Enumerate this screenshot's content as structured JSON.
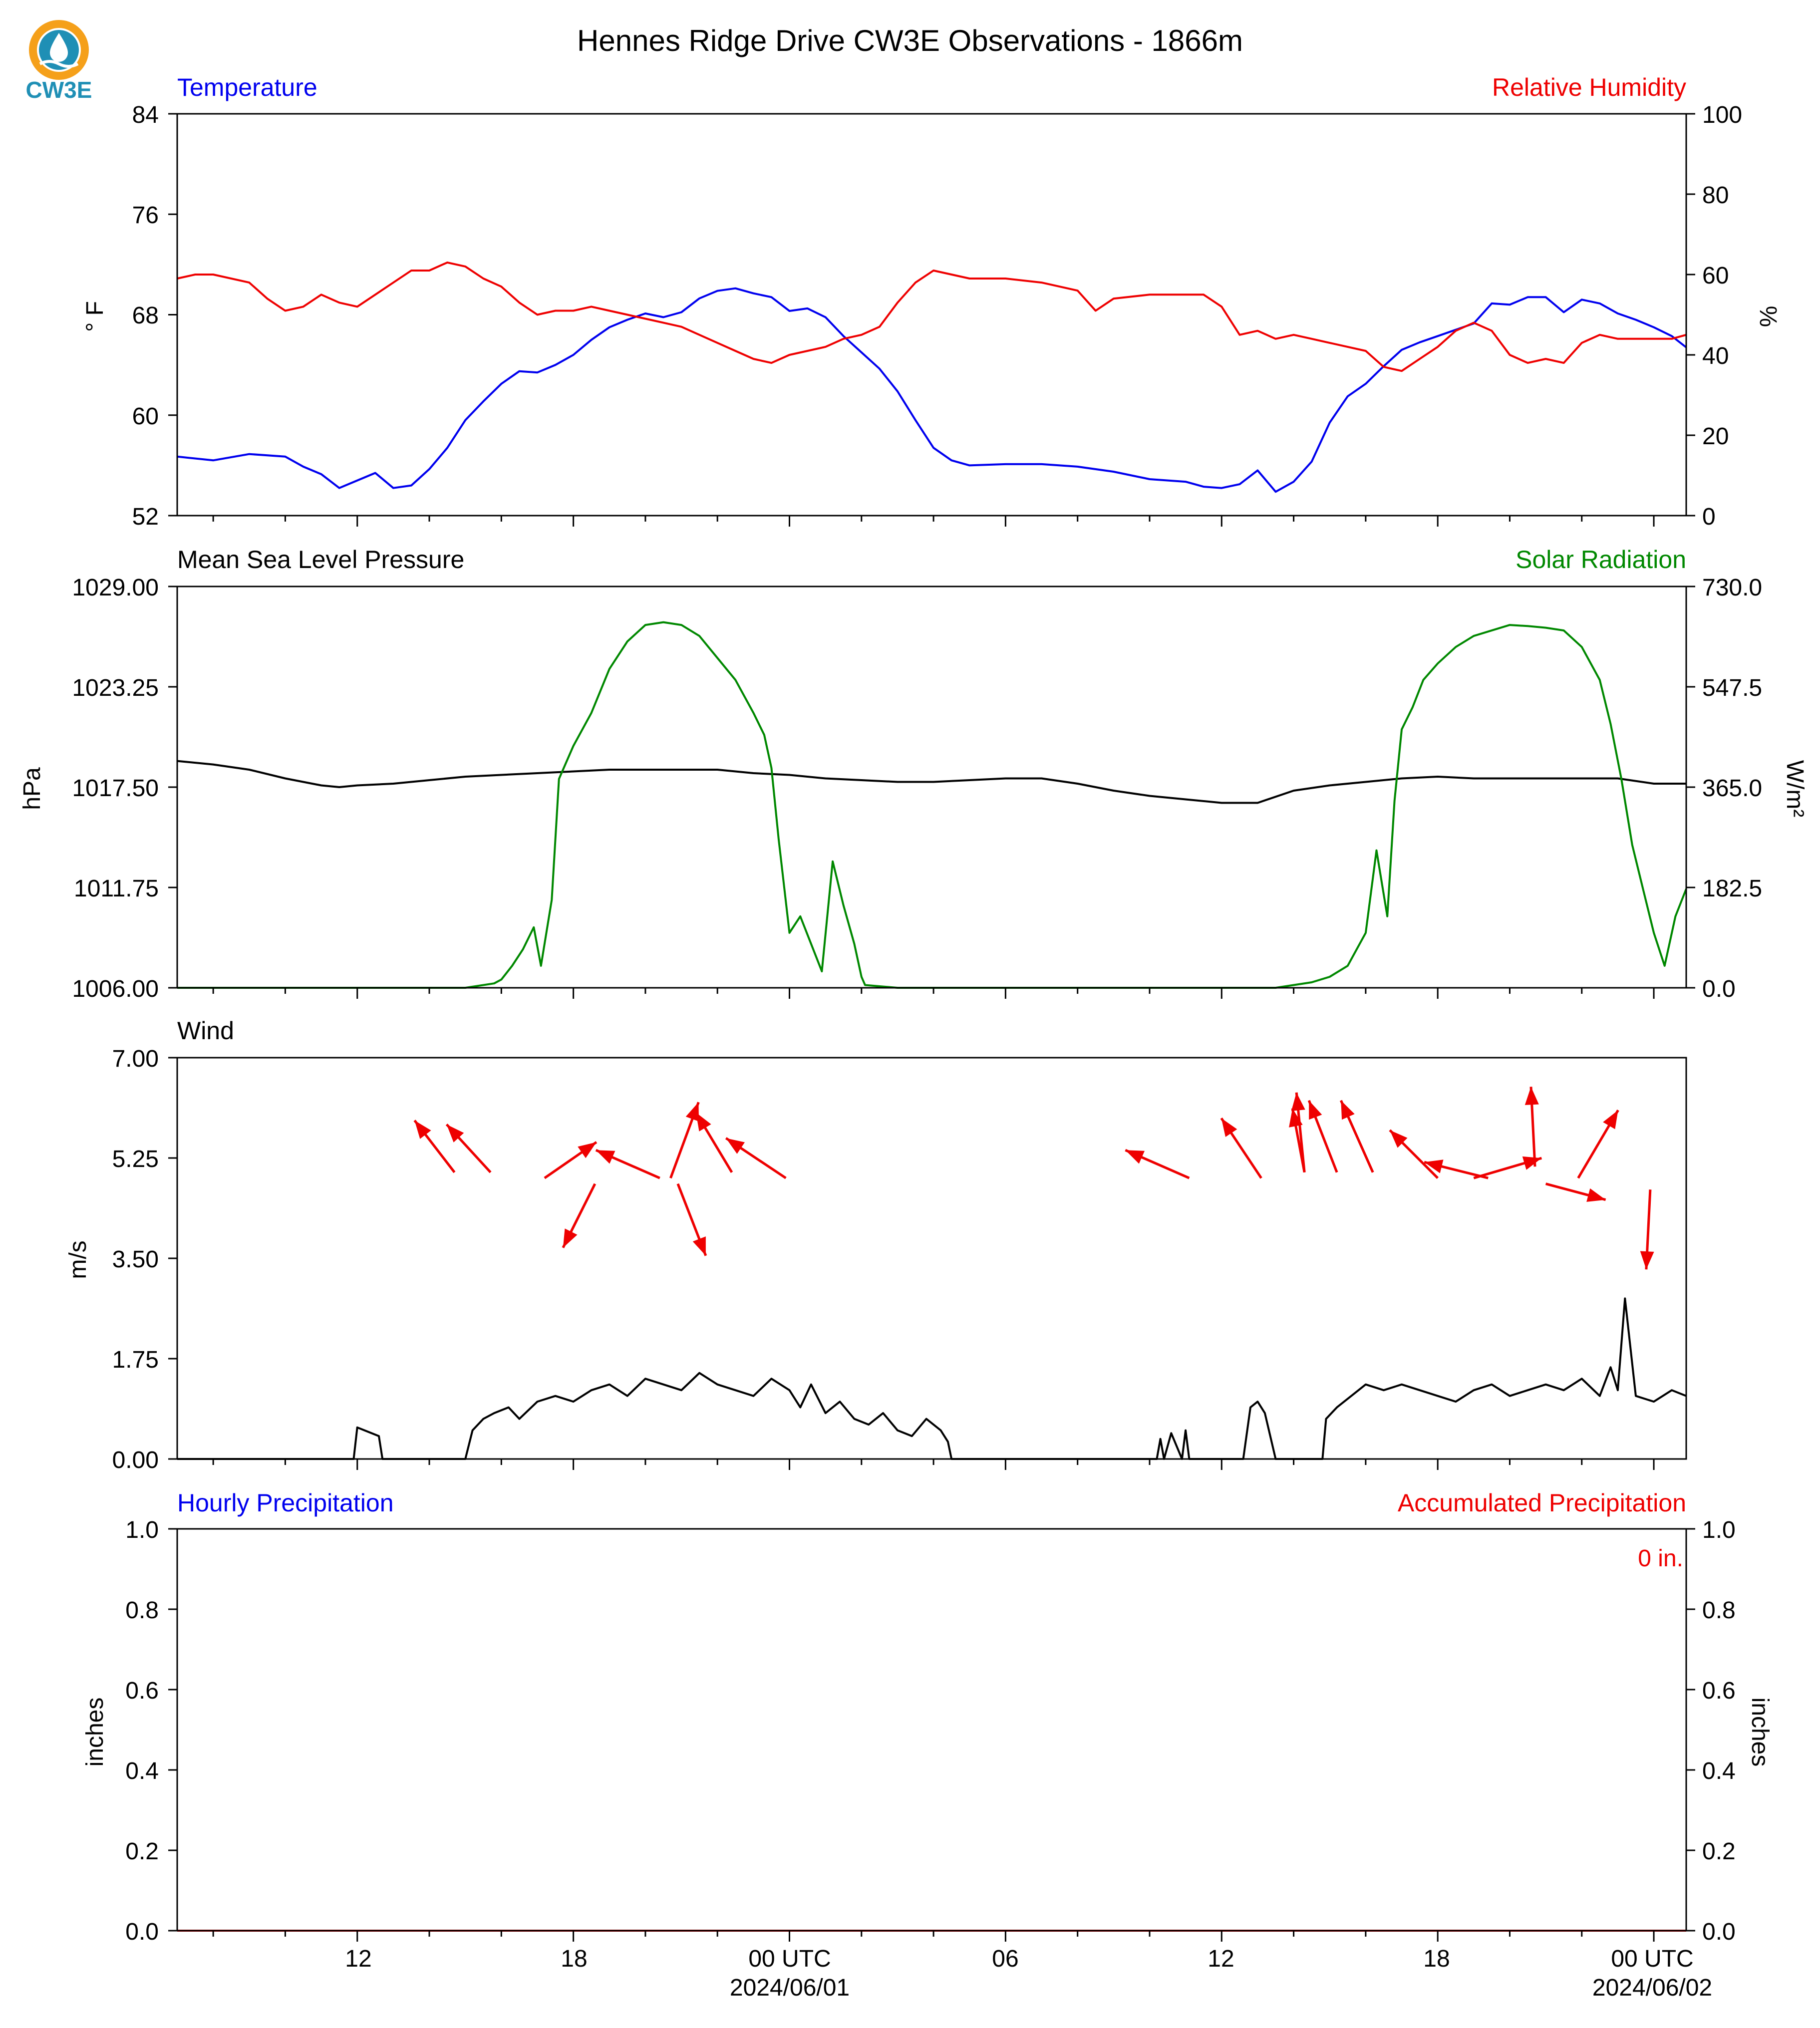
{
  "figure": {
    "title": "Hennes Ridge Drive CW3E Observations - 1866m",
    "logo_text": "CW3E",
    "logo_colors": {
      "ring": "#f5a01a",
      "drop": "#1f8fb5",
      "water": "#2a7fb8",
      "text": "#1f8fb5"
    }
  },
  "time_axis": {
    "start_hour": 7,
    "end_hour": 48.9,
    "major_ticks": [
      {
        "hour": 12,
        "label": "12",
        "date": ""
      },
      {
        "hour": 18,
        "label": "18",
        "date": ""
      },
      {
        "hour": 24,
        "label": "00 UTC",
        "date": "2024/06/01"
      },
      {
        "hour": 30,
        "label": "06",
        "date": ""
      },
      {
        "hour": 36,
        "label": "12",
        "date": ""
      },
      {
        "hour": 42,
        "label": "18",
        "date": ""
      },
      {
        "hour": 48,
        "label": "00 UTC",
        "date": "2024/06/02"
      }
    ],
    "minor_tick_hours": [
      8,
      10,
      14,
      16,
      20,
      22,
      26,
      28,
      32,
      34,
      38,
      40,
      44,
      46
    ]
  },
  "chart_data": [
    {
      "type": "line",
      "panel": "temperature-humidity",
      "left_title": "Temperature",
      "right_title": "Relative Humidity",
      "ylabel": "° F",
      "ylabel_right": "%",
      "ylim": [
        52,
        84
      ],
      "ylim_right": [
        0,
        100
      ],
      "yticks": [
        "84",
        "76",
        "68",
        "60",
        "52"
      ],
      "yticks_right": [
        "100",
        "80",
        "60",
        "40",
        "20",
        "0"
      ],
      "colors": {
        "left": "#0000ee",
        "right": "#ee0000"
      },
      "series": [
        {
          "name": "Temperature",
          "axis": "left",
          "color": "#0000ee",
          "x": [
            7.0,
            8.0,
            9.0,
            10.0,
            10.5,
            11.0,
            11.5,
            12.0,
            12.5,
            13.0,
            13.5,
            14.0,
            14.5,
            15.0,
            15.5,
            16.0,
            16.5,
            17.0,
            17.5,
            18.0,
            18.5,
            19.0,
            19.5,
            20.0,
            20.5,
            21.0,
            21.5,
            22.0,
            22.5,
            23.0,
            23.5,
            24.0,
            24.5,
            25.0,
            25.5,
            26.0,
            26.5,
            27.0,
            27.5,
            28.0,
            28.5,
            29.0,
            30.0,
            31.0,
            32.0,
            33.0,
            34.0,
            35.0,
            35.5,
            36.0,
            36.5,
            37.0,
            37.5,
            38.0,
            38.5,
            39.0,
            39.5,
            40.0,
            40.5,
            41.0,
            41.5,
            42.0,
            42.5,
            43.0,
            43.5,
            44.0,
            44.5,
            45.0,
            45.5,
            46.0,
            46.5,
            47.0,
            47.5,
            48.0,
            48.5,
            48.9
          ],
          "y": [
            56.7,
            56.4,
            56.9,
            56.7,
            55.9,
            55.3,
            54.2,
            54.8,
            55.4,
            54.2,
            54.4,
            55.7,
            57.4,
            59.6,
            61.1,
            62.5,
            63.5,
            63.4,
            64.0,
            64.8,
            66.0,
            67.0,
            67.6,
            68.1,
            67.8,
            68.2,
            69.3,
            69.9,
            70.1,
            69.7,
            69.4,
            68.3,
            68.5,
            67.8,
            66.3,
            65.0,
            63.7,
            61.9,
            59.6,
            57.4,
            56.4,
            56.0,
            56.1,
            56.1,
            55.9,
            55.5,
            54.9,
            54.7,
            54.3,
            54.2,
            54.5,
            55.6,
            53.9,
            54.7,
            56.3,
            59.4,
            61.5,
            62.5,
            63.9,
            65.2,
            65.8,
            66.3,
            66.8,
            67.3,
            68.9,
            68.8,
            69.4,
            69.4,
            68.2,
            69.2,
            68.9,
            68.1,
            67.6,
            67.0,
            66.3,
            65.4
          ]
        },
        {
          "name": "Relative Humidity",
          "axis": "right",
          "color": "#ee0000",
          "x": [
            7.0,
            7.5,
            8.0,
            9.0,
            9.5,
            10.0,
            10.5,
            11.0,
            11.5,
            12.0,
            12.5,
            13.0,
            13.5,
            14.0,
            14.5,
            15.0,
            15.5,
            16.0,
            16.5,
            17.0,
            17.5,
            18.0,
            18.5,
            19.0,
            19.5,
            20.0,
            20.5,
            21.0,
            21.5,
            22.0,
            22.5,
            23.0,
            23.5,
            24.0,
            24.5,
            25.0,
            25.5,
            26.0,
            26.5,
            27.0,
            27.5,
            28.0,
            28.5,
            29.0,
            30.0,
            31.0,
            32.0,
            32.5,
            33.0,
            34.0,
            35.0,
            35.5,
            36.0,
            36.5,
            37.0,
            37.5,
            38.0,
            38.5,
            39.0,
            39.5,
            40.0,
            40.5,
            41.0,
            41.5,
            42.0,
            42.5,
            43.0,
            43.5,
            44.0,
            44.5,
            45.0,
            45.5,
            46.0,
            46.5,
            47.0,
            47.5,
            48.0,
            48.5,
            48.9
          ],
          "y": [
            59,
            60,
            60,
            58,
            54,
            51,
            52,
            55,
            53,
            52,
            55,
            58,
            61,
            61,
            63,
            62,
            59,
            57,
            53,
            50,
            51,
            51,
            52,
            51,
            50,
            49,
            48,
            47,
            45,
            43,
            41,
            39,
            38,
            40,
            41,
            42,
            44,
            45,
            47,
            53,
            58,
            61,
            60,
            59,
            59,
            58,
            56,
            51,
            54,
            55,
            55,
            55,
            52,
            45,
            46,
            44,
            45,
            44,
            43,
            42,
            41,
            37,
            36,
            39,
            42,
            46,
            48,
            46,
            40,
            38,
            39,
            38,
            43,
            45,
            44,
            44,
            44,
            44,
            45
          ]
        }
      ]
    },
    {
      "type": "line",
      "panel": "pressure-solar",
      "left_title": "Mean Sea Level Pressure",
      "right_title": "Solar Radiation",
      "ylabel": "hPa",
      "ylabel_right": "W/m²",
      "ylim": [
        1006.0,
        1029.0
      ],
      "ylim_right": [
        0.0,
        730.0
      ],
      "yticks": [
        "1029.00",
        "1023.25",
        "1017.50",
        "1011.75",
        "1006.00"
      ],
      "yticks_right": [
        "730.0",
        "547.5",
        "365.0",
        "182.5",
        "0.0"
      ],
      "colors": {
        "left": "#000000",
        "right": "#008800"
      },
      "series": [
        {
          "name": "Mean Sea Level Pressure",
          "axis": "left",
          "color": "#000000",
          "x": [
            7.0,
            8.0,
            9.0,
            10.0,
            11.0,
            11.5,
            12.0,
            13.0,
            14.0,
            15.0,
            16.0,
            17.0,
            18.0,
            19.0,
            20.0,
            21.0,
            22.0,
            23.0,
            24.0,
            25.0,
            26.0,
            27.0,
            28.0,
            29.0,
            30.0,
            31.0,
            32.0,
            33.0,
            34.0,
            35.0,
            36.0,
            37.0,
            38.0,
            39.0,
            40.0,
            41.0,
            42.0,
            43.0,
            44.0,
            45.0,
            46.0,
            47.0,
            48.0,
            48.9
          ],
          "y": [
            1019.0,
            1018.8,
            1018.5,
            1018.0,
            1017.6,
            1017.5,
            1017.6,
            1017.7,
            1017.9,
            1018.1,
            1018.2,
            1018.3,
            1018.4,
            1018.5,
            1018.5,
            1018.5,
            1018.5,
            1018.3,
            1018.2,
            1018.0,
            1017.9,
            1017.8,
            1017.8,
            1017.9,
            1018.0,
            1018.0,
            1017.7,
            1017.3,
            1017.0,
            1016.8,
            1016.6,
            1016.6,
            1017.3,
            1017.6,
            1017.8,
            1018.0,
            1018.1,
            1018.0,
            1018.0,
            1018.0,
            1018.0,
            1018.0,
            1017.7,
            1017.7
          ]
        },
        {
          "name": "Solar Radiation",
          "axis": "right",
          "color": "#008800",
          "x": [
            7.0,
            11.0,
            12.0,
            13.0,
            14.5,
            15.0,
            15.8,
            16.0,
            16.3,
            16.6,
            16.9,
            17.1,
            17.4,
            17.6,
            18.0,
            18.5,
            19.0,
            19.5,
            20.0,
            20.5,
            21.0,
            21.5,
            22.0,
            22.5,
            23.0,
            23.3,
            23.5,
            23.7,
            24.0,
            24.3,
            24.6,
            24.9,
            25.2,
            25.5,
            25.8,
            26.0,
            26.1,
            27.0,
            30.0,
            35.0,
            36.0,
            37.5,
            38.0,
            38.5,
            39.0,
            39.5,
            40.0,
            40.3,
            40.6,
            40.8,
            41.0,
            41.3,
            41.6,
            42.0,
            42.5,
            43.0,
            43.5,
            44.0,
            44.5,
            45.0,
            45.5,
            46.0,
            46.5,
            46.8,
            47.1,
            47.4,
            47.7,
            48.0,
            48.3,
            48.6,
            48.9
          ],
          "y": [
            0,
            0,
            0,
            0,
            0,
            0,
            8,
            15,
            40,
            70,
            110,
            40,
            160,
            380,
            440,
            500,
            580,
            630,
            660,
            665,
            660,
            640,
            600,
            560,
            500,
            460,
            400,
            270,
            100,
            130,
            80,
            30,
            230,
            150,
            80,
            20,
            5,
            0,
            0,
            0,
            0,
            0,
            5,
            10,
            20,
            40,
            100,
            250,
            130,
            340,
            470,
            510,
            560,
            590,
            620,
            640,
            650,
            660,
            658,
            655,
            650,
            620,
            560,
            480,
            380,
            260,
            180,
            100,
            40,
            130,
            180
          ]
        }
      ]
    },
    {
      "type": "line",
      "panel": "wind",
      "left_title": "Wind",
      "ylabel": "m/s",
      "ylim": [
        0.0,
        7.0
      ],
      "yticks": [
        "7.00",
        "5.25",
        "3.50",
        "1.75",
        "0.00"
      ],
      "colors": {
        "speed": "#000000",
        "arrows": "#ee0000"
      },
      "series": [
        {
          "name": "Wind Speed",
          "color": "#000000",
          "x": [
            7.0,
            11.9,
            12.0,
            12.2,
            12.6,
            12.7,
            15.0,
            15.2,
            15.5,
            15.8,
            16.2,
            16.5,
            17.0,
            17.5,
            18.0,
            18.5,
            19.0,
            19.5,
            20.0,
            20.5,
            21.0,
            21.5,
            22.0,
            22.5,
            23.0,
            23.5,
            24.0,
            24.3,
            24.6,
            25.0,
            25.4,
            25.8,
            26.2,
            26.6,
            27.0,
            27.4,
            27.8,
            28.2,
            28.4,
            28.5,
            34.2,
            34.3,
            34.4,
            34.6,
            34.9,
            35.0,
            35.1,
            36.0,
            36.6,
            36.8,
            37.0,
            37.2,
            37.5,
            38.0,
            38.8,
            38.9,
            39.2,
            39.6,
            40.0,
            40.5,
            41.0,
            41.5,
            42.0,
            42.5,
            43.0,
            43.5,
            44.0,
            44.5,
            45.0,
            45.5,
            46.0,
            46.5,
            46.8,
            47.0,
            47.2,
            47.5,
            48.0,
            48.5,
            48.9
          ],
          "y": [
            0,
            0,
            0.55,
            0.5,
            0.4,
            0,
            0,
            0.5,
            0.7,
            0.8,
            0.9,
            0.7,
            1.0,
            1.1,
            1.0,
            1.2,
            1.3,
            1.1,
            1.4,
            1.3,
            1.2,
            1.5,
            1.3,
            1.2,
            1.1,
            1.4,
            1.2,
            0.9,
            1.3,
            0.8,
            1.0,
            0.7,
            0.6,
            0.8,
            0.5,
            0.4,
            0.7,
            0.5,
            0.3,
            0,
            0,
            0.35,
            0,
            0.45,
            0,
            0.5,
            0,
            0,
            0,
            0.9,
            1.0,
            0.8,
            0,
            0,
            0,
            0.7,
            0.9,
            1.1,
            1.3,
            1.2,
            1.3,
            1.2,
            1.1,
            1.0,
            1.2,
            1.3,
            1.1,
            1.2,
            1.3,
            1.2,
            1.4,
            1.1,
            1.6,
            1.2,
            2.8,
            1.1,
            1.0,
            1.2,
            1.1
          ]
        }
      ],
      "wind_arrows": [
        {
          "hour": 14.7,
          "speed": 5.0,
          "u": -1.0,
          "v": 1.3
        },
        {
          "hour": 15.7,
          "speed": 5.0,
          "u": -1.1,
          "v": 1.2
        },
        {
          "hour": 17.2,
          "speed": 4.9,
          "u": 1.3,
          "v": 0.9
        },
        {
          "hour": 18.6,
          "speed": 4.8,
          "u": -0.8,
          "v": -1.6
        },
        {
          "hour": 20.7,
          "speed": 4.9,
          "u": 0.7,
          "v": 1.9
        },
        {
          "hour": 20.4,
          "speed": 4.9,
          "u": -1.6,
          "v": 0.7
        },
        {
          "hour": 20.9,
          "speed": 4.8,
          "u": 0.7,
          "v": -1.8
        },
        {
          "hour": 22.4,
          "speed": 5.0,
          "u": -0.9,
          "v": 1.5
        },
        {
          "hour": 23.9,
          "speed": 4.9,
          "u": -1.5,
          "v": 1.0
        },
        {
          "hour": 35.1,
          "speed": 4.9,
          "u": -1.6,
          "v": 0.7
        },
        {
          "hour": 37.1,
          "speed": 4.9,
          "u": -1.0,
          "v": 1.5
        },
        {
          "hour": 38.3,
          "speed": 5.0,
          "u": -0.2,
          "v": 2.0
        },
        {
          "hour": 38.3,
          "speed": 5.0,
          "u": -0.3,
          "v": 1.6
        },
        {
          "hour": 39.2,
          "speed": 5.0,
          "u": -0.7,
          "v": 1.8
        },
        {
          "hour": 40.2,
          "speed": 5.0,
          "u": -0.8,
          "v": 1.8
        },
        {
          "hour": 42.0,
          "speed": 4.9,
          "u": -1.2,
          "v": 1.2
        },
        {
          "hour": 43.0,
          "speed": 4.9,
          "u": 1.7,
          "v": 0.5
        },
        {
          "hour": 43.4,
          "speed": 4.9,
          "u": -1.6,
          "v": 0.4
        },
        {
          "hour": 44.7,
          "speed": 5.1,
          "u": -0.1,
          "v": 2.0
        },
        {
          "hour": 45.0,
          "speed": 4.8,
          "u": 1.5,
          "v": -0.4
        },
        {
          "hour": 45.9,
          "speed": 4.9,
          "u": 1.0,
          "v": 1.7
        },
        {
          "hour": 47.9,
          "speed": 4.7,
          "u": -0.1,
          "v": -2.0
        }
      ]
    },
    {
      "type": "line",
      "panel": "precipitation",
      "left_title": "Hourly Precipitation",
      "right_title": "Accumulated Precipitation",
      "ylabel": "inches",
      "ylabel_right": "inches",
      "ylim": [
        0.0,
        1.0
      ],
      "ylim_right": [
        0.0,
        1.0
      ],
      "yticks": [
        "1.0",
        "0.8",
        "0.6",
        "0.4",
        "0.2",
        "0.0"
      ],
      "yticks_right": [
        "1.0",
        "0.8",
        "0.6",
        "0.4",
        "0.2",
        "0.0"
      ],
      "total_label": "0 in.",
      "colors": {
        "left": "#0000ee",
        "right": "#ee0000"
      },
      "series": [
        {
          "name": "Hourly Precipitation",
          "axis": "left",
          "color": "#0000ee",
          "x": [
            7.0,
            48.9
          ],
          "y": [
            0,
            0
          ]
        },
        {
          "name": "Accumulated Precipitation",
          "axis": "right",
          "color": "#ee0000",
          "x": [
            7.0,
            48.9
          ],
          "y": [
            0,
            0
          ]
        }
      ]
    }
  ]
}
